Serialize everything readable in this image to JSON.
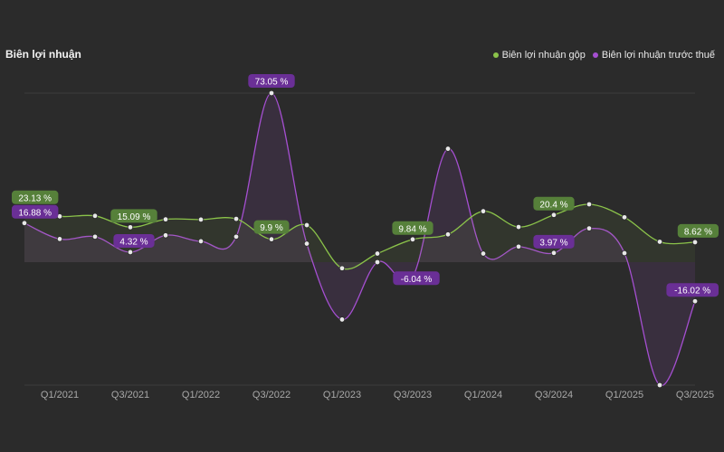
{
  "chart_data": {
    "type": "line",
    "title": "Biên lợi nhuận",
    "xlabel": "",
    "ylabel": "",
    "ylim": [
      -22,
      75
    ],
    "grid": true,
    "legend_position": "top-right",
    "tick_labels": [
      "Q1/2021",
      "Q3/2021",
      "Q1/2022",
      "Q3/2022",
      "Q1/2023",
      "Q3/2023",
      "Q1/2024",
      "Q3/2024",
      "Q1/2025",
      "Q3/2025"
    ],
    "series": [
      {
        "name": "Biên lợi nhuận gộp",
        "color": "#8bc34a",
        "values": [
          23.13,
          19.8,
          20.0,
          15.09,
          18.5,
          18.4,
          18.7,
          9.9,
          16.0,
          -2.5,
          3.7,
          9.84,
          12.0,
          22.0,
          15.2,
          20.4,
          25.0,
          19.4,
          8.8,
          8.62
        ]
      },
      {
        "name": "Biên lợi nhuận trước thuế",
        "color": "#a54fd1",
        "values": [
          16.88,
          10.0,
          11.0,
          4.32,
          11.6,
          9.0,
          11.0,
          73.05,
          8.0,
          -23.5,
          0.0,
          -6.04,
          49.0,
          3.7,
          6.7,
          3.97,
          14.6,
          3.9,
          -50.4,
          -16.02
        ]
      }
    ],
    "data_labels": [
      {
        "series": 0,
        "index": 0,
        "text": "23.13 %"
      },
      {
        "series": 0,
        "index": 3,
        "text": "15.09 %"
      },
      {
        "series": 0,
        "index": 7,
        "text": "9.9 %"
      },
      {
        "series": 0,
        "index": 11,
        "text": "9.84 %"
      },
      {
        "series": 0,
        "index": 15,
        "text": "20.4 %"
      },
      {
        "series": 0,
        "index": 19,
        "text": "8.62 %"
      },
      {
        "series": 1,
        "index": 0,
        "text": "16.88 %"
      },
      {
        "series": 1,
        "index": 3,
        "text": "4.32 %"
      },
      {
        "series": 1,
        "index": 7,
        "text": "73.05 %"
      },
      {
        "series": 1,
        "index": 11,
        "text": "-6.04 %"
      },
      {
        "series": 1,
        "index": 15,
        "text": "3.97 %"
      },
      {
        "series": 1,
        "index": 19,
        "text": "-16.02 %"
      }
    ]
  }
}
